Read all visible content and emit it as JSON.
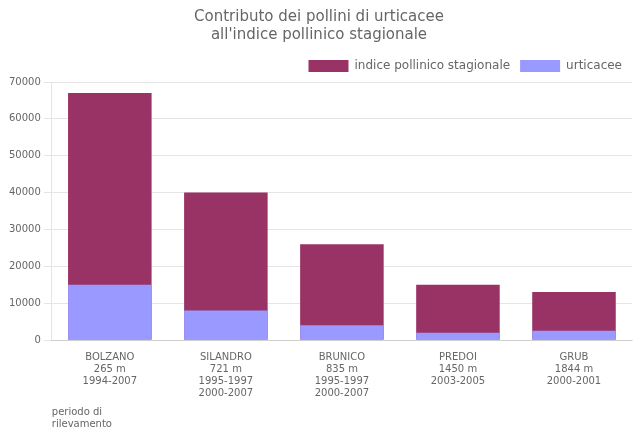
{
  "chart_data": {
    "type": "bar",
    "title": "Contributo dei pollini di urticacee\nall'indice pollinico stagionale",
    "xlabel": "periodo di\nrilevamento",
    "categories": [
      "BOLZANO\n265 m\n1994-2007",
      "SILANDRO\n721 m\n1995-1997\n2000-2007",
      "BRUNICO\n835 m\n1995-1997\n2000-2007",
      "PREDOI\n1450 m\n2003-2005",
      "GRUB\n1844 m\n2000-2001"
    ],
    "series": [
      {
        "name": "indice pollinico stagionale",
        "color": "#993366",
        "values": [
          67000,
          40000,
          26000,
          15000,
          13000
        ]
      },
      {
        "name": "urticacee",
        "color": "#9999FF",
        "values": [
          15000,
          8000,
          4000,
          2000,
          2500
        ]
      }
    ],
    "ylim": [
      0,
      70000
    ],
    "yticks": [
      0,
      10000,
      20000,
      30000,
      40000,
      50000,
      60000,
      70000
    ],
    "grid": true,
    "legend": "upper right"
  }
}
